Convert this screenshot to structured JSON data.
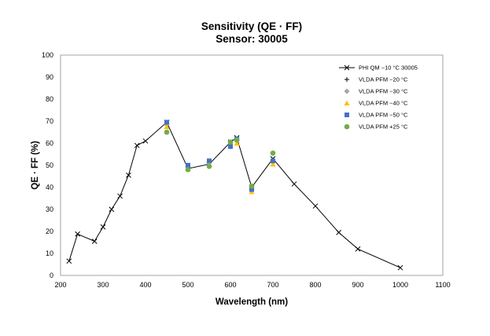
{
  "chart_data": {
    "type": "scatter",
    "title": "Sensitivity (QE · FF)",
    "subtitle": "Sensor: 30005",
    "xlabel": "Wavelength (nm)",
    "ylabel": "QE · FF (%)",
    "xlim": [
      200,
      1100
    ],
    "ylim": [
      0,
      100
    ],
    "xticks": [
      200,
      300,
      400,
      500,
      600,
      700,
      800,
      900,
      1000,
      1100
    ],
    "yticks": [
      0,
      10,
      20,
      30,
      40,
      50,
      60,
      70,
      80,
      90,
      100
    ],
    "grid": false,
    "legend_position": "top-right",
    "series": [
      {
        "name": "PHI QM −10 °C 30005",
        "marker": "x",
        "line": true,
        "color": "#000000",
        "points": [
          [
            220,
            6.5
          ],
          [
            240,
            18.8
          ],
          [
            280,
            15.5
          ],
          [
            300,
            22
          ],
          [
            320,
            30
          ],
          [
            340,
            36
          ],
          [
            360,
            45.5
          ],
          [
            380,
            59
          ],
          [
            400,
            61
          ],
          [
            450,
            69.5
          ],
          [
            500,
            48.5
          ],
          [
            550,
            50.5
          ],
          [
            600,
            60.5
          ],
          [
            615,
            62.5
          ],
          [
            650,
            40
          ],
          [
            700,
            53
          ],
          [
            750,
            41.5
          ],
          [
            800,
            31.5
          ],
          [
            855,
            19.5
          ],
          [
            900,
            12
          ],
          [
            1000,
            3.5
          ]
        ]
      },
      {
        "name": "VLDA PFM −20 °C",
        "marker": "plus",
        "line": false,
        "color": "#000000",
        "points": [
          [
            450,
            69
          ],
          [
            500,
            49.5
          ],
          [
            550,
            51.5
          ],
          [
            600,
            59.5
          ],
          [
            615,
            61.5
          ],
          [
            650,
            39.5
          ],
          [
            700,
            52
          ]
        ]
      },
      {
        "name": "VLDA PFM −30 °C",
        "marker": "diamond",
        "line": false,
        "color": "#a5a5a5",
        "points": [
          [
            450,
            68.5
          ],
          [
            500,
            49
          ],
          [
            550,
            51
          ],
          [
            600,
            60
          ],
          [
            615,
            61
          ],
          [
            650,
            39.5
          ],
          [
            700,
            51.5
          ]
        ]
      },
      {
        "name": "VLDA PFM −40 °C",
        "marker": "triangle",
        "line": false,
        "color": "#ffc000",
        "points": [
          [
            450,
            67.5
          ],
          [
            500,
            48.5
          ],
          [
            550,
            50.5
          ],
          [
            600,
            60.5
          ],
          [
            615,
            60
          ],
          [
            650,
            38
          ],
          [
            700,
            50.5
          ]
        ]
      },
      {
        "name": "VLDA PFM −50 °C",
        "marker": "square",
        "line": false,
        "color": "#4472c4",
        "points": [
          [
            450,
            69.5
          ],
          [
            500,
            50
          ],
          [
            550,
            52
          ],
          [
            600,
            58.5
          ],
          [
            615,
            62
          ],
          [
            650,
            39
          ],
          [
            700,
            52
          ]
        ]
      },
      {
        "name": "VLDA PFM +25 °C",
        "marker": "circle",
        "line": false,
        "color": "#70ad47",
        "points": [
          [
            450,
            65
          ],
          [
            500,
            48
          ],
          [
            550,
            49.5
          ],
          [
            600,
            60.5
          ],
          [
            615,
            61.5
          ],
          [
            650,
            40.5
          ],
          [
            700,
            55.5
          ]
        ]
      }
    ]
  }
}
